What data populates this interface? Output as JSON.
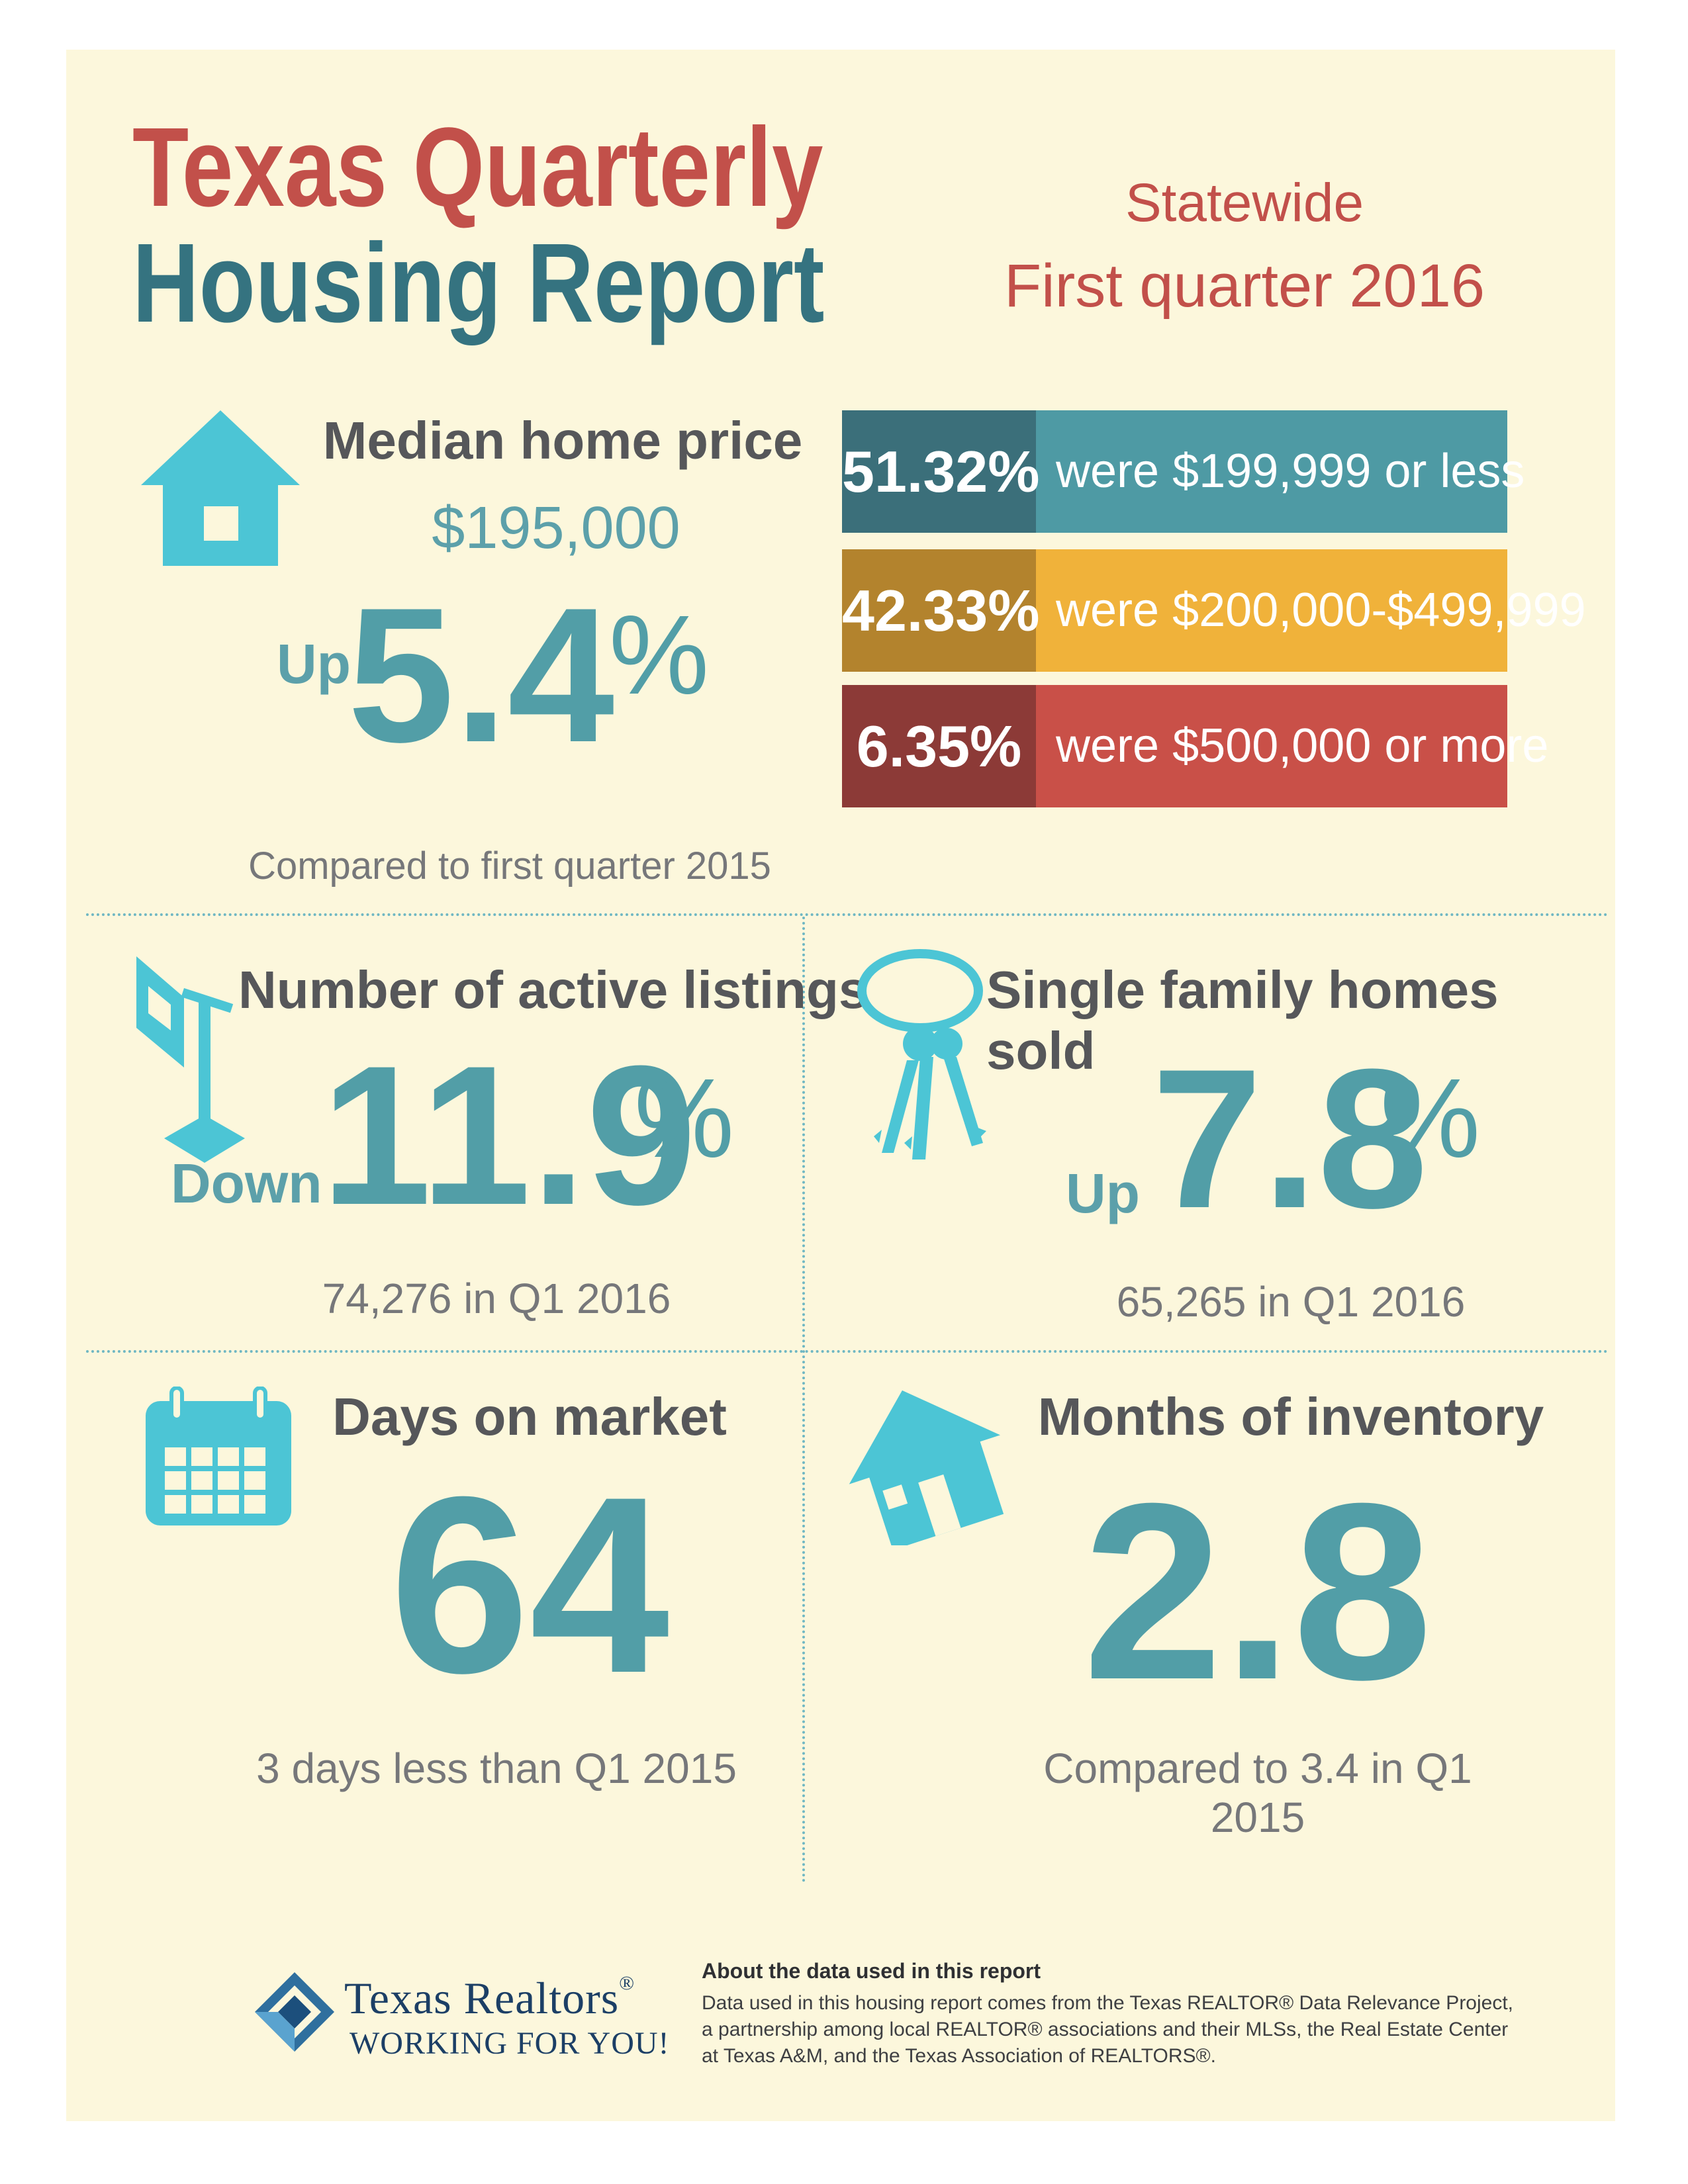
{
  "header": {
    "title_line1": "Texas Quarterly",
    "title_line2": "Housing Report",
    "region": "Statewide",
    "period": "First quarter 2016"
  },
  "median_price": {
    "heading": "Median home price",
    "price": "$195,000",
    "direction": "Up",
    "change_value": "5.4",
    "change_unit": "%",
    "note": "Compared to first quarter 2015",
    "icon": "house-icon"
  },
  "price_breakdown": [
    {
      "percent": "51.32%",
      "label": "were $199,999 or less",
      "dark": "#3b6f7a",
      "light": "#4e9aa4"
    },
    {
      "percent": "42.33%",
      "label": "were $200,000-$499,999",
      "dark": "#b3832d",
      "light": "#f0b23a"
    },
    {
      "percent": "6.35%",
      "label": "were $500,000 or more",
      "dark": "#8c3a37",
      "light": "#c95048"
    }
  ],
  "active_listings": {
    "heading": "Number of active listings",
    "direction": "Down",
    "change_value": "11.9",
    "change_unit": "%",
    "note": "74,276 in Q1 2016",
    "icon": "for-sale-sign-icon"
  },
  "homes_sold": {
    "heading": "Single family homes sold",
    "direction": "Up",
    "change_value": "7.8",
    "change_unit": "%",
    "note": "65,265 in Q1 2016",
    "icon": "keys-icon"
  },
  "days_on_market": {
    "heading": "Days on market",
    "value": "64",
    "note": "3 days less than Q1 2015",
    "icon": "calendar-icon"
  },
  "inventory": {
    "heading": "Months of inventory",
    "value": "2.8",
    "note": "Compared to 3.4 in Q1 2015",
    "icon": "tilted-house-icon"
  },
  "footer": {
    "logo_line1": "Texas Realtors",
    "logo_reg": "®",
    "logo_line2": "WORKING FOR YOU!",
    "about_heading": "About the data used in this report",
    "about_line1": "Data used in this housing report comes from the Texas REALTOR® Data Relevance Project,",
    "about_line2": "a partnership among local REALTOR® associations and their MLSs, the Real Estate Center",
    "about_line3": "at Texas A&M, and the Texas Association of REALTORS®."
  },
  "colors": {
    "background": "#fcf7dc",
    "title_red": "#c2504a",
    "title_teal": "#357380",
    "stat_teal": "#529ea7",
    "icon_teal": "#4cc5d5"
  }
}
